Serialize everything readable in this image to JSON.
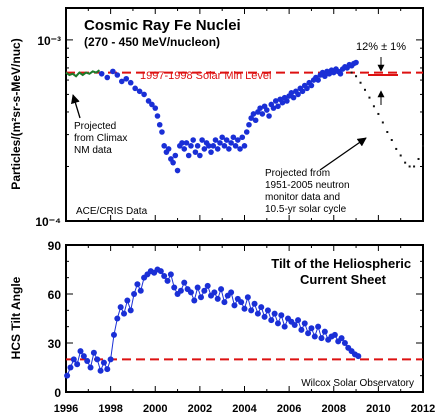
{
  "chart_data": [
    {
      "type": "scatter",
      "title": "Cosmic Ray Fe Nuclei",
      "subtitle": "(270 - 450 MeV/nucleon)",
      "ylabel": "Particles/(m²sr-s-MeV/nuc)",
      "yscale": "log",
      "ylim": [
        0.0001,
        0.0015
      ],
      "xlim": [
        1996,
        2012
      ],
      "ytick_labels": [
        "10⁻⁴",
        "10⁻³"
      ],
      "reference_line": {
        "label": "1997-1998 Solar Min Level",
        "value": 0.00066,
        "color": "#dd1111"
      },
      "annotations": [
        {
          "text": "12% ± 1%",
          "x": 2010.1
        },
        {
          "text": "Projected from Climax NM data",
          "x": 1996.5
        },
        {
          "text": "Projected from 1951-2005 neutron monitor data and 10.5-yr solar cycle",
          "x": 2011.0
        }
      ],
      "source": "ACE/CRIS Data",
      "series": [
        {
          "color": "#1a2fd6",
          "points": [
            [
              1997.6,
              0.00065
            ],
            [
              1997.85,
              0.00062
            ],
            [
              1998.1,
              0.00067
            ],
            [
              1998.3,
              0.00064
            ],
            [
              1998.5,
              0.00059
            ],
            [
              1998.7,
              0.00061
            ],
            [
              1998.9,
              0.00058
            ],
            [
              1999.1,
              0.00054
            ],
            [
              1999.3,
              0.00052
            ],
            [
              1999.5,
              0.0005
            ],
            [
              1999.7,
              0.00046
            ],
            [
              1999.85,
              0.00044
            ],
            [
              2000.0,
              0.00042
            ],
            [
              2000.1,
              0.00038
            ],
            [
              2000.2,
              0.00034
            ],
            [
              2000.3,
              0.00031
            ],
            [
              2000.4,
              0.00026
            ],
            [
              2000.5,
              0.00024
            ],
            [
              2000.6,
              0.00025
            ],
            [
              2000.7,
              0.00022
            ],
            [
              2000.8,
              0.00021
            ],
            [
              2000.9,
              0.00023
            ],
            [
              2001.0,
              0.00019
            ],
            [
              2001.1,
              0.00026
            ],
            [
              2001.2,
              0.00027
            ],
            [
              2001.3,
              0.00025
            ],
            [
              2001.4,
              0.00027
            ],
            [
              2001.5,
              0.00023
            ],
            [
              2001.6,
              0.00026
            ],
            [
              2001.7,
              0.00028
            ],
            [
              2001.8,
              0.00024
            ],
            [
              2001.9,
              0.00026
            ],
            [
              2002.0,
              0.00023
            ],
            [
              2002.1,
              0.00028
            ],
            [
              2002.2,
              0.00025
            ],
            [
              2002.3,
              0.00027
            ],
            [
              2002.4,
              0.00026
            ],
            [
              2002.5,
              0.00024
            ],
            [
              2002.6,
              0.00026
            ],
            [
              2002.7,
              0.00028
            ],
            [
              2002.8,
              0.00025
            ],
            [
              2002.9,
              0.00027
            ],
            [
              2003.0,
              0.00029
            ],
            [
              2003.1,
              0.00026
            ],
            [
              2003.2,
              0.00028
            ],
            [
              2003.3,
              0.00025
            ],
            [
              2003.4,
              0.00027
            ],
            [
              2003.5,
              0.00029
            ],
            [
              2003.6,
              0.00026
            ],
            [
              2003.7,
              0.00028
            ],
            [
              2003.8,
              0.00025
            ],
            [
              2003.9,
              0.00029
            ],
            [
              2004.0,
              0.00026
            ],
            [
              2004.1,
              0.00031
            ],
            [
              2004.2,
              0.00034
            ],
            [
              2004.3,
              0.00037
            ],
            [
              2004.4,
              0.00039
            ],
            [
              2004.5,
              0.00036
            ],
            [
              2004.6,
              0.0004
            ],
            [
              2004.7,
              0.00042
            ],
            [
              2004.8,
              0.00039
            ],
            [
              2004.9,
              0.00043
            ],
            [
              2005.0,
              0.00041
            ],
            [
              2005.1,
              0.00038
            ],
            [
              2005.2,
              0.00044
            ],
            [
              2005.3,
              0.00042
            ],
            [
              2005.4,
              0.00046
            ],
            [
              2005.5,
              0.00043
            ],
            [
              2005.6,
              0.00047
            ],
            [
              2005.7,
              0.00045
            ],
            [
              2005.8,
              0.00048
            ],
            [
              2005.9,
              0.00046
            ],
            [
              2006.0,
              0.00049
            ],
            [
              2006.1,
              0.00051
            ],
            [
              2006.2,
              0.00048
            ],
            [
              2006.3,
              0.00052
            ],
            [
              2006.4,
              0.0005
            ],
            [
              2006.5,
              0.00054
            ],
            [
              2006.6,
              0.00052
            ],
            [
              2006.7,
              0.00056
            ],
            [
              2006.8,
              0.00054
            ],
            [
              2006.9,
              0.00058
            ],
            [
              2007.0,
              0.00056
            ],
            [
              2007.1,
              0.0006
            ],
            [
              2007.2,
              0.00062
            ],
            [
              2007.3,
              0.0006
            ],
            [
              2007.4,
              0.00064
            ],
            [
              2007.5,
              0.00066
            ],
            [
              2007.6,
              0.00063
            ],
            [
              2007.7,
              0.00067
            ],
            [
              2007.8,
              0.00065
            ],
            [
              2007.9,
              0.00068
            ],
            [
              2008.0,
              0.00066
            ],
            [
              2008.1,
              0.00069
            ],
            [
              2008.2,
              0.00067
            ],
            [
              2008.3,
              0.00065
            ],
            [
              2008.4,
              0.00069
            ],
            [
              2008.5,
              0.00071
            ],
            [
              2008.6,
              0.0007
            ],
            [
              2008.7,
              0.00073
            ],
            [
              2008.8,
              0.00072
            ],
            [
              2008.9,
              0.00074
            ],
            [
              2009.0,
              0.00075
            ]
          ]
        },
        {
          "color": "#1d7a2a",
          "points": [
            [
              1996.0,
              0.00066
            ],
            [
              1996.15,
              0.00064
            ],
            [
              1996.3,
              0.00065
            ],
            [
              1996.45,
              0.00063
            ],
            [
              1996.6,
              0.00066
            ],
            [
              1996.75,
              0.00064
            ],
            [
              1996.9,
              0.00066
            ],
            [
              1997.05,
              0.00065
            ],
            [
              1997.2,
              0.00067
            ],
            [
              1997.35,
              0.00066
            ],
            [
              1997.5,
              0.00068
            ]
          ]
        },
        {
          "color": "#111111",
          "points": [
            [
              2008.8,
              0.00066
            ],
            [
              2009.0,
              0.00063
            ],
            [
              2009.2,
              0.00058
            ],
            [
              2009.4,
              0.00053
            ],
            [
              2009.6,
              0.00048
            ],
            [
              2009.8,
              0.00043
            ],
            [
              2010.0,
              0.00039
            ],
            [
              2010.2,
              0.00035
            ],
            [
              2010.4,
              0.00031
            ],
            [
              2010.6,
              0.00028
            ],
            [
              2010.8,
              0.00025
            ],
            [
              2011.0,
              0.00023
            ],
            [
              2011.2,
              0.00021
            ],
            [
              2011.4,
              0.0002
            ],
            [
              2011.6,
              0.0002
            ],
            [
              2011.8,
              0.00022
            ],
            [
              2012.0,
              0.00026
            ]
          ]
        }
      ]
    },
    {
      "type": "line",
      "title": "Tilt of the Heliospheric Current Sheet",
      "ylabel": "HCS Tilt Angle",
      "ylim": [
        0,
        90
      ],
      "xlim": [
        1996,
        2012
      ],
      "y_ticks": [
        0,
        30,
        60,
        90
      ],
      "y_tick_labels": [
        "0",
        "30",
        "60",
        "90"
      ],
      "reference_line": {
        "value": 20,
        "color": "#dd1111"
      },
      "source": "Wilcox Solar Observatory",
      "series": [
        {
          "color": "#1a2fd6",
          "x": [
            1996.05,
            1996.2,
            1996.35,
            1996.5,
            1996.65,
            1996.8,
            1996.95,
            1997.1,
            1997.25,
            1997.4,
            1997.55,
            1997.7,
            1997.85,
            1998.0,
            1998.15,
            1998.3,
            1998.45,
            1998.6,
            1998.75,
            1998.9,
            1999.05,
            1999.2,
            1999.35,
            1999.5,
            1999.65,
            1999.8,
            1999.95,
            2000.1,
            2000.25,
            2000.4,
            2000.55,
            2000.7,
            2000.85,
            2001.0,
            2001.15,
            2001.3,
            2001.45,
            2001.6,
            2001.75,
            2001.9,
            2002.05,
            2002.2,
            2002.35,
            2002.5,
            2002.65,
            2002.8,
            2002.95,
            2003.1,
            2003.25,
            2003.4,
            2003.55,
            2003.7,
            2003.85,
            2004.0,
            2004.15,
            2004.3,
            2004.45,
            2004.6,
            2004.75,
            2004.9,
            2005.05,
            2005.2,
            2005.35,
            2005.5,
            2005.65,
            2005.8,
            2005.95,
            2006.1,
            2006.25,
            2006.4,
            2006.55,
            2006.7,
            2006.85,
            2007.0,
            2007.15,
            2007.3,
            2007.45,
            2007.6,
            2007.75,
            2007.9,
            2008.05,
            2008.2,
            2008.35,
            2008.5,
            2008.65,
            2008.8,
            2008.95,
            2009.1
          ],
          "values": [
            10,
            15,
            20,
            17,
            25,
            22,
            19,
            15,
            24,
            20,
            13,
            18,
            14,
            20,
            35,
            45,
            52,
            48,
            56,
            50,
            60,
            66,
            62,
            70,
            72,
            74,
            73,
            75,
            74,
            71,
            68,
            72,
            64,
            60,
            62,
            67,
            63,
            61,
            56,
            64,
            58,
            62,
            65,
            59,
            61,
            57,
            63,
            55,
            59,
            61,
            53,
            57,
            55,
            51,
            58,
            50,
            54,
            48,
            52,
            46,
            50,
            44,
            48,
            42,
            47,
            40,
            45,
            43,
            41,
            44,
            38,
            42,
            36,
            39,
            34,
            40,
            33,
            37,
            32,
            34,
            35,
            31,
            33,
            30,
            27,
            25,
            23,
            22
          ]
        }
      ]
    }
  ],
  "x_tick_labels": [
    "1996",
    "1998",
    "2000",
    "2002",
    "2004",
    "2006",
    "2008",
    "2010",
    "2012"
  ]
}
